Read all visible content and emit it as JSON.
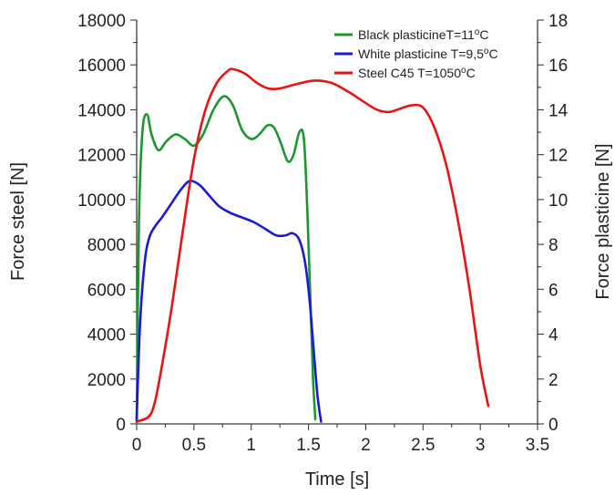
{
  "chart_data": {
    "type": "line",
    "xlabel": "Time [s]",
    "ylabel_left": "Force steel [N]",
    "ylabel_right": "Force plasticine [N]",
    "xlim": [
      0,
      3.5
    ],
    "ylim_left": [
      0,
      18000
    ],
    "ylim_right": [
      0,
      18
    ],
    "x_ticks": [
      "0",
      "0.5",
      "1",
      "1.5",
      "2",
      "2.5",
      "3",
      "3.5"
    ],
    "y_left_ticks": [
      "0",
      "2000",
      "4000",
      "6000",
      "8000",
      "10000",
      "12000",
      "14000",
      "16000",
      "18000"
    ],
    "y_right_ticks": [
      "0",
      "2",
      "4",
      "6",
      "8",
      "10",
      "12",
      "14",
      "16",
      "18"
    ],
    "grid": false,
    "legend_position": "top-right",
    "series": [
      {
        "name": "Black plasticineT=11",
        "name_sup": "o",
        "name_suffix": "C",
        "axis": "right",
        "color": "#1e9630",
        "x": [
          0.0,
          0.02,
          0.05,
          0.09,
          0.13,
          0.19,
          0.26,
          0.34,
          0.42,
          0.5,
          0.58,
          0.67,
          0.76,
          0.84,
          0.92,
          1.0,
          1.07,
          1.14,
          1.2,
          1.26,
          1.32,
          1.37,
          1.42,
          1.46,
          1.49,
          1.52,
          1.54,
          1.56
        ],
        "y": [
          0.0,
          9.0,
          13.0,
          13.8,
          12.9,
          12.2,
          12.6,
          12.9,
          12.7,
          12.4,
          12.9,
          14.0,
          14.6,
          14.2,
          13.1,
          12.7,
          12.9,
          13.3,
          13.2,
          12.5,
          11.7,
          12.0,
          13.0,
          12.7,
          9.5,
          5.0,
          2.0,
          0.2
        ]
      },
      {
        "name": "White plasticine T=9,5",
        "name_sup": "o",
        "name_suffix": "C",
        "axis": "right",
        "color": "#1a1ad6",
        "x": [
          0.0,
          0.03,
          0.07,
          0.11,
          0.16,
          0.22,
          0.3,
          0.38,
          0.45,
          0.5,
          0.56,
          0.63,
          0.72,
          0.82,
          0.92,
          1.02,
          1.12,
          1.22,
          1.3,
          1.36,
          1.42,
          1.47,
          1.51,
          1.55,
          1.58,
          1.61
        ],
        "y": [
          0.2,
          4.5,
          7.2,
          8.3,
          8.8,
          9.2,
          9.8,
          10.4,
          10.8,
          10.8,
          10.6,
          10.2,
          9.7,
          9.4,
          9.2,
          9.0,
          8.7,
          8.4,
          8.4,
          8.5,
          8.2,
          7.2,
          5.5,
          3.0,
          1.2,
          0.1
        ]
      },
      {
        "name": "Steel C45 T=1050",
        "name_sup": "o",
        "name_suffix": "C",
        "axis": "left",
        "color": "#e61414",
        "x": [
          0.0,
          0.1,
          0.15,
          0.2,
          0.3,
          0.4,
          0.5,
          0.6,
          0.7,
          0.8,
          0.85,
          0.95,
          1.05,
          1.15,
          1.25,
          1.4,
          1.55,
          1.7,
          1.85,
          2.0,
          2.1,
          2.2,
          2.3,
          2.4,
          2.5,
          2.6,
          2.7,
          2.8,
          2.9,
          3.0,
          3.07
        ],
        "y": [
          100,
          300,
          800,
          2000,
          5000,
          8500,
          11800,
          14000,
          15200,
          15750,
          15800,
          15600,
          15200,
          14950,
          14950,
          15150,
          15300,
          15200,
          14800,
          14300,
          14000,
          13900,
          14050,
          14200,
          14100,
          13200,
          11600,
          9200,
          6200,
          2600,
          800
        ]
      }
    ]
  }
}
